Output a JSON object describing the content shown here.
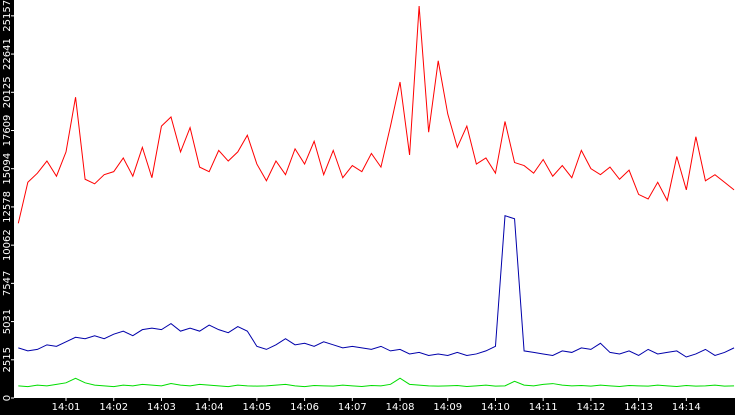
{
  "chart_data": {
    "type": "line",
    "x": [
      0,
      0.2,
      0.4,
      0.6,
      0.8,
      1,
      1.2,
      1.4,
      1.6,
      1.8,
      2,
      2.2,
      2.4,
      2.6,
      2.8,
      3,
      3.2,
      3.4,
      3.6,
      3.8,
      4,
      4.2,
      4.4,
      4.6,
      4.8,
      5,
      5.2,
      5.4,
      5.6,
      5.8,
      6,
      6.2,
      6.4,
      6.6,
      6.8,
      7,
      7.2,
      7.4,
      7.6,
      7.8,
      8,
      8.2,
      8.4,
      8.6,
      8.8,
      9,
      9.2,
      9.4,
      9.6,
      9.8,
      10,
      10.2,
      10.4,
      10.6,
      10.8,
      11,
      11.2,
      11.4,
      11.6,
      11.8,
      12,
      12.2,
      12.4,
      12.6,
      12.8,
      13,
      13.2,
      13.4,
      13.6,
      13.8,
      14,
      14.2,
      14.4,
      14.6,
      14.8,
      15
    ],
    "series": [
      {
        "color": "#ff0000",
        "values": [
          11500,
          14200,
          14800,
          15600,
          14600,
          16200,
          19800,
          14400,
          14100,
          14700,
          14900,
          15800,
          14600,
          16500,
          14500,
          17900,
          18500,
          16200,
          17800,
          15200,
          14900,
          16300,
          15600,
          16200,
          17300,
          15400,
          14300,
          15600,
          14700,
          16400,
          15400,
          16900,
          14700,
          16300,
          14500,
          15300,
          14900,
          16100,
          15200,
          17900,
          20800,
          16000,
          25800,
          17500,
          22200,
          18700,
          16500,
          17900,
          15400,
          15800,
          14800,
          18200,
          15500,
          15300,
          14800,
          15700,
          14600,
          15300,
          14500,
          16300,
          15100,
          14700,
          15200,
          14400,
          15000,
          13400,
          13100,
          14200,
          13000,
          15900,
          13700,
          17200,
          14300,
          14700,
          14200,
          13700
        ]
      },
      {
        "color": "#0000aa",
        "values": [
          3300,
          3100,
          3200,
          3500,
          3400,
          3700,
          4000,
          3900,
          4100,
          3900,
          4200,
          4400,
          4100,
          4500,
          4600,
          4500,
          4900,
          4400,
          4600,
          4400,
          4800,
          4500,
          4300,
          4700,
          4400,
          3400,
          3200,
          3500,
          3900,
          3500,
          3600,
          3400,
          3700,
          3500,
          3300,
          3400,
          3300,
          3200,
          3400,
          3100,
          3200,
          2900,
          3000,
          2800,
          2900,
          2800,
          3000,
          2800,
          2900,
          3100,
          3400,
          12000,
          11800,
          3100,
          3000,
          2900,
          2800,
          3100,
          3000,
          3300,
          3200,
          3600,
          3000,
          2900,
          3100,
          2800,
          3200,
          2900,
          3000,
          3100,
          2700,
          2900,
          3200,
          2800,
          3000,
          3300
        ]
      },
      {
        "color": "#00dd00",
        "values": [
          800,
          750,
          850,
          800,
          900,
          1000,
          1300,
          1000,
          850,
          800,
          750,
          850,
          800,
          900,
          850,
          800,
          950,
          850,
          800,
          900,
          850,
          800,
          750,
          850,
          800,
          780,
          800,
          850,
          900,
          800,
          750,
          820,
          800,
          780,
          850,
          800,
          760,
          820,
          800,
          900,
          1300,
          900,
          850,
          800,
          780,
          800,
          820,
          760,
          800,
          850,
          780,
          800,
          1100,
          850,
          800,
          900,
          950,
          850,
          800,
          820,
          780,
          850,
          800,
          760,
          820,
          800,
          780,
          850,
          800,
          760,
          820,
          780,
          800,
          850,
          780,
          800
        ]
      }
    ],
    "xlim": [
      -0.09,
      15.02
    ],
    "xticks": [
      {
        "value": 1,
        "label": "14:01"
      },
      {
        "value": 2,
        "label": "14:02"
      },
      {
        "value": 3,
        "label": "14:03"
      },
      {
        "value": 4,
        "label": "14:04"
      },
      {
        "value": 5,
        "label": "14:05"
      },
      {
        "value": 6,
        "label": "14:06"
      },
      {
        "value": 7,
        "label": "14:07"
      },
      {
        "value": 8,
        "label": "14:08"
      },
      {
        "value": 9,
        "label": "14:09"
      },
      {
        "value": 10,
        "label": "14:10"
      },
      {
        "value": 11,
        "label": "14:11"
      },
      {
        "value": 12,
        "label": "14:12"
      },
      {
        "value": 13,
        "label": "14:13"
      },
      {
        "value": 14,
        "label": "14:14"
      }
    ],
    "ylim": [
      0,
      26200
    ],
    "yticks": [
      0,
      2515,
      5031,
      7547,
      10062,
      12578,
      15094,
      17609,
      20125,
      22641,
      25157
    ]
  }
}
